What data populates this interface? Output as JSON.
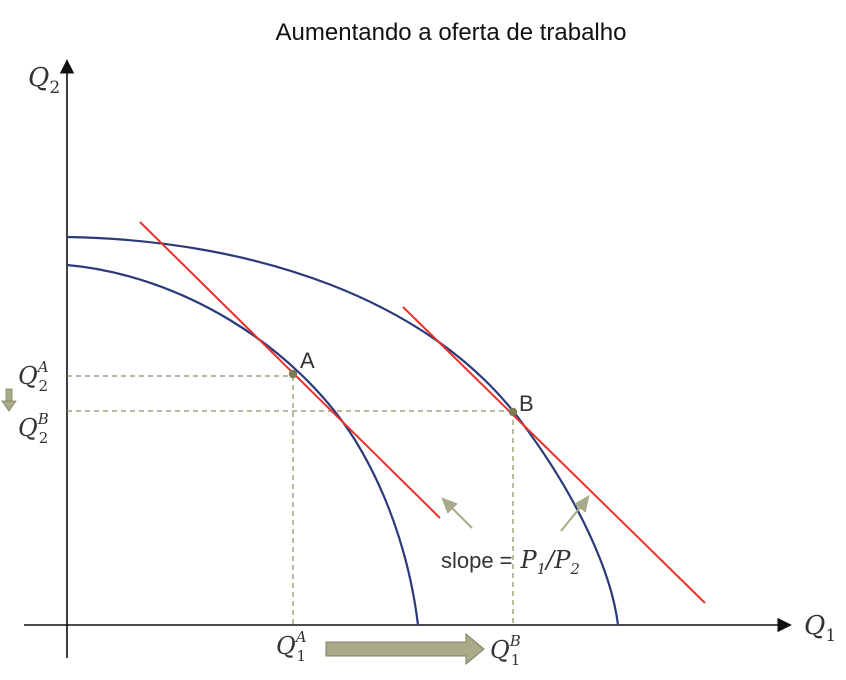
{
  "title": "Aumentando a oferta de trabalho",
  "axes": {
    "y_label": "Q",
    "y_sub": "2",
    "x_label": "Q",
    "x_sub": "1"
  },
  "points": {
    "a_label": "A",
    "b_label": "B"
  },
  "ticks": {
    "q2a_main": "Q",
    "q2a_sub": "2",
    "q2a_sup": "A",
    "q2b_main": "Q",
    "q2b_sub": "2",
    "q2b_sup": "B",
    "q1a_main": "Q",
    "q1a_sub": "1",
    "q1a_sup": "A",
    "q1b_main": "Q",
    "q1b_sub": "1",
    "q1b_sup": "B"
  },
  "annotation": {
    "slope_word": "slope",
    "equals": "=",
    "p1": "P",
    "p1_sub": "1",
    "slash": "/",
    "p2": "P",
    "p2_sub": "2"
  },
  "colors": {
    "curve": "#2b3a7a",
    "tangent": "#e8322b",
    "guide": "#8a9060",
    "point": "#7a7a55",
    "arrow_fill": "#a8aa88",
    "arrow_stroke": "#7e8060",
    "axis": "#111111"
  }
}
